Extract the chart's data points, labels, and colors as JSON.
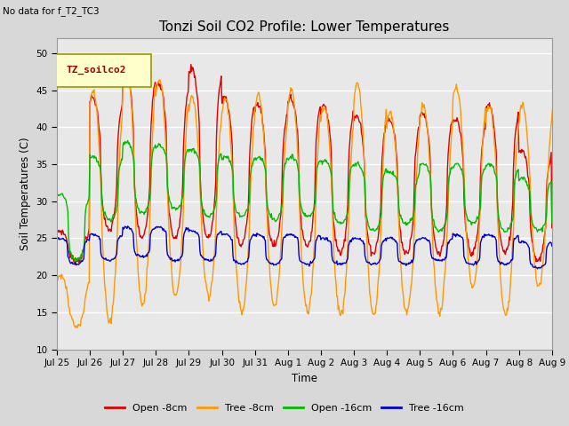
{
  "title": "Tonzi Soil CO2 Profile: Lower Temperatures",
  "subtitle": "No data for f_T2_TC3",
  "ylabel": "Soil Temperatures (C)",
  "xlabel": "Time",
  "ylim": [
    10,
    52
  ],
  "yticks": [
    10,
    15,
    20,
    25,
    30,
    35,
    40,
    45,
    50
  ],
  "legend_label": "TZ_soilco2",
  "series_colors": {
    "open8": "#dd0000",
    "tree8": "#ff9900",
    "open16": "#00bb00",
    "tree16": "#0000cc"
  },
  "series_labels": [
    "Open -8cm",
    "Tree -8cm",
    "Open -16cm",
    "Tree -16cm"
  ],
  "background_color": "#e8e8e8",
  "fig_color": "#d8d8d8",
  "x_labels": [
    "Jul 25",
    "Jul 26",
    "Jul 27",
    "Jul 28",
    "Jul 29",
    "Jul 30",
    "Jul 31",
    "Aug 1",
    "Aug 2",
    "Aug 3",
    "Aug 4",
    "Aug 5",
    "Aug 6",
    "Aug 7",
    "Aug 8",
    "Aug 9"
  ]
}
